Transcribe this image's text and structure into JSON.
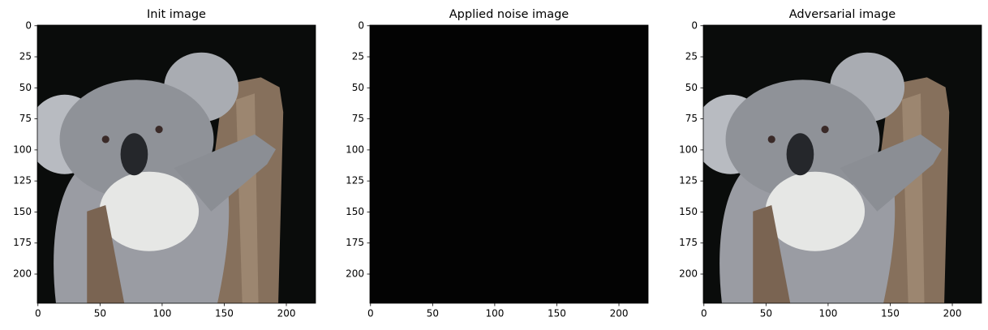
{
  "chart_data": [
    {
      "type": "image",
      "title": "Init image",
      "xlim": [
        -0.5,
        223.5
      ],
      "ylim": [
        223.5,
        -0.5
      ],
      "xticks": [
        0,
        50,
        100,
        150,
        200
      ],
      "yticks": [
        0,
        25,
        50,
        75,
        100,
        125,
        150,
        175,
        200
      ]
    },
    {
      "type": "image",
      "title": "Applied noise image",
      "xlim": [
        -0.5,
        223.5
      ],
      "ylim": [
        223.5,
        -0.5
      ],
      "xticks": [
        0,
        50,
        100,
        150,
        200
      ],
      "yticks": [
        0,
        25,
        50,
        75,
        100,
        125,
        150,
        175,
        200
      ]
    },
    {
      "type": "image",
      "title": "Adversarial image",
      "xlim": [
        -0.5,
        223.5
      ],
      "ylim": [
        223.5,
        -0.5
      ],
      "xticks": [
        0,
        50,
        100,
        150,
        200
      ],
      "yticks": [
        0,
        25,
        50,
        75,
        100,
        125,
        150,
        175,
        200
      ]
    }
  ]
}
